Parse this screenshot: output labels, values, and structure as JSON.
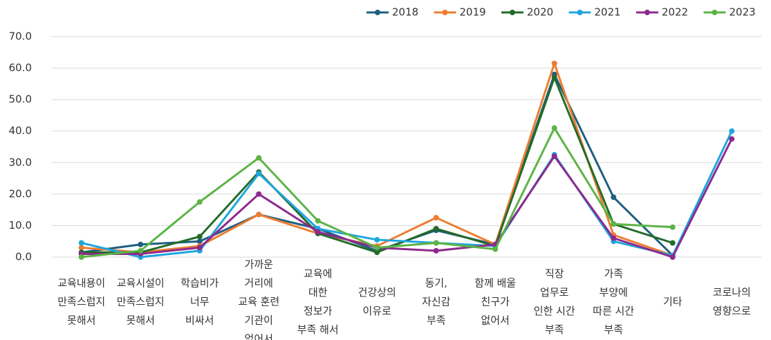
{
  "chart_data": {
    "type": "line",
    "categories": [
      [
        "교육내용이",
        "만족스럽지",
        "못해서"
      ],
      [
        "교육시설이",
        "만족스럽지",
        "못해서"
      ],
      [
        "학습비가",
        "너무",
        "비싸서"
      ],
      [
        "가까운",
        "거리에",
        "교육 훈련",
        "기관이",
        "없어서"
      ],
      [
        "교육에",
        "대한",
        "정보가",
        "부족 해서"
      ],
      [
        "건강상의",
        "이유로"
      ],
      [
        "동기,",
        "자신감",
        "부족"
      ],
      [
        "함께 배울",
        "친구가",
        "없어서"
      ],
      [
        "직장",
        "업무로",
        "인한 시간",
        "부족"
      ],
      [
        "가족",
        "부양에",
        "따른 시간",
        "부족"
      ],
      [
        "기타"
      ],
      [
        "코로나의",
        "영향으로"
      ]
    ],
    "series": [
      {
        "name": "2018",
        "color": "#1f5f80",
        "values": [
          1.5,
          4,
          5,
          13.5,
          9,
          2,
          8.5,
          4,
          58,
          19,
          0.5,
          null
        ]
      },
      {
        "name": "2019",
        "color": "#ed7d31",
        "values": [
          3,
          1.5,
          3.5,
          13.5,
          7.5,
          3.5,
          12.5,
          4,
          61.5,
          7,
          0.5,
          null
        ]
      },
      {
        "name": "2020",
        "color": "#236b2a",
        "values": [
          1.5,
          1.5,
          6.5,
          27,
          7.5,
          1.5,
          9,
          3.5,
          57,
          10.5,
          4.5,
          null
        ]
      },
      {
        "name": "2021",
        "color": "#1fa6de",
        "values": [
          4.5,
          0,
          2,
          26.5,
          9,
          5.5,
          4.5,
          3.5,
          32.5,
          5,
          0.5,
          40
        ]
      },
      {
        "name": "2022",
        "color": "#8e2a8e",
        "values": [
          1,
          1,
          3,
          20,
          8,
          3,
          2,
          4,
          32,
          6,
          0,
          37.5
        ]
      },
      {
        "name": "2023",
        "color": "#5cb445",
        "values": [
          0,
          2,
          17.5,
          31.5,
          11.5,
          3,
          4.5,
          2.5,
          41,
          10.5,
          9.5,
          null
        ]
      }
    ],
    "ylim": [
      0,
      70
    ],
    "yticks": [
      {
        "value": 0,
        "label": "0.0"
      },
      {
        "value": 10,
        "label": "10.0"
      },
      {
        "value": 20,
        "label": "20.0"
      },
      {
        "value": 30,
        "label": "30.0"
      },
      {
        "value": 40,
        "label": "40.0"
      },
      {
        "value": 50,
        "label": "50.0"
      },
      {
        "value": 60,
        "label": "60.0"
      },
      {
        "value": 70,
        "label": "70.0"
      }
    ],
    "grid": true,
    "legend": "top"
  }
}
